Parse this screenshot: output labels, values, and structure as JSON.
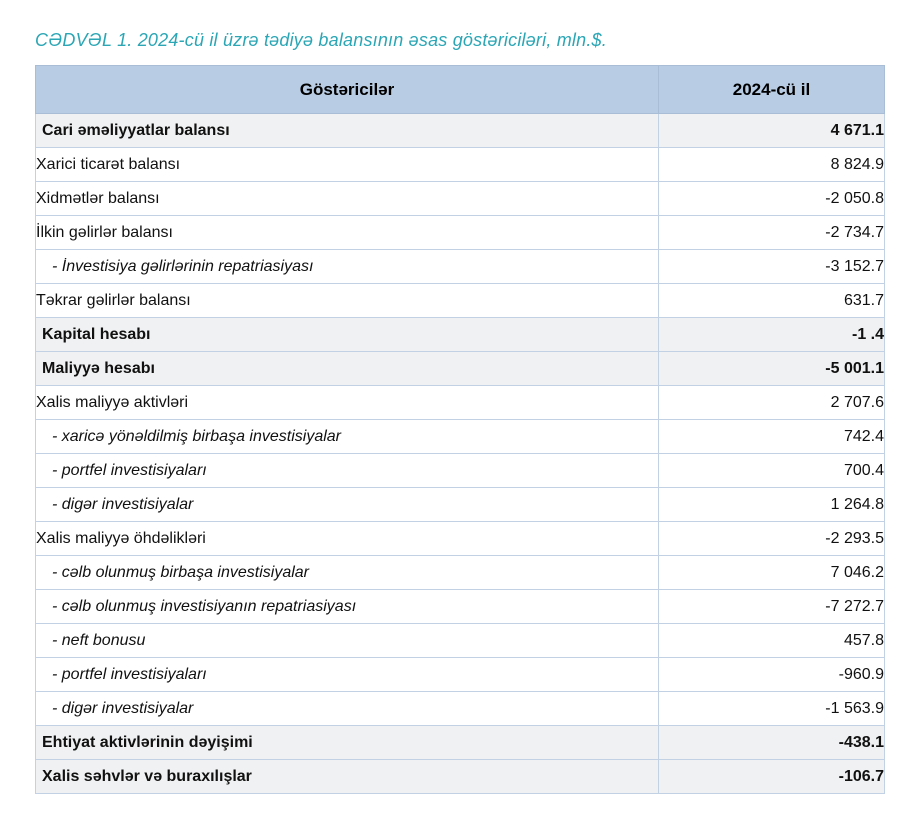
{
  "document": {
    "title": "CƏDVƏL 1. 2024-cü il üzrə tədiyə balansının əsas göstəriciləri, mln.$."
  },
  "table": {
    "columns": [
      {
        "label": "Göstəricilər"
      },
      {
        "label": "2024-cü il"
      }
    ],
    "rows": [
      {
        "label": "Cari əməliyyatlar balansı",
        "value": "4 671.1",
        "type": "section"
      },
      {
        "label": "Xarici ticarət balansı",
        "value": "8 824.9",
        "type": "item"
      },
      {
        "label": "Xidmətlər balansı",
        "value": "-2 050.8",
        "type": "item"
      },
      {
        "label": "İlkin gəlirlər balansı",
        "value": "-2 734.7",
        "type": "item"
      },
      {
        "label": "- İnvestisiya gəlirlərinin repatriasiyası",
        "value": "-3 152.7",
        "type": "sub"
      },
      {
        "label": "Təkrar gəlirlər balansı",
        "value": "631.7",
        "type": "item"
      },
      {
        "label": "Kapital hesabı",
        "value": "-1 .4",
        "type": "section"
      },
      {
        "label": "Maliyyə hesabı",
        "value": "-5 001.1",
        "type": "section"
      },
      {
        "label": "Xalis maliyyə aktivləri",
        "value": "2 707.6",
        "type": "item"
      },
      {
        "label": "- xaricə yönəldilmiş birbaşa investisiyalar",
        "value": "742.4",
        "type": "sub"
      },
      {
        "label": "- portfel investisiyaları",
        "value": "700.4",
        "type": "sub"
      },
      {
        "label": "- digər investisiyalar",
        "value": "1 264.8",
        "type": "sub"
      },
      {
        "label": "Xalis maliyyə öhdəlikləri",
        "value": "-2 293.5",
        "type": "item"
      },
      {
        "label": "- cəlb olunmuş birbaşa investisiyalar",
        "value": "7 046.2",
        "type": "sub"
      },
      {
        "label": "- cəlb olunmuş investisiyanın repatriasiyası",
        "value": "-7 272.7",
        "type": "sub"
      },
      {
        "label": "- neft bonusu",
        "value": "457.8",
        "type": "sub"
      },
      {
        "label": "- portfel investisiyaları",
        "value": "-960.9",
        "type": "sub"
      },
      {
        "label": "- digər investisiyalar",
        "value": "-1 563.9",
        "type": "sub"
      },
      {
        "label": "Ehtiyat aktivlərinin dəyişimi",
        "value": "-438.1",
        "type": "section"
      },
      {
        "label": "Xalis səhvlər və buraxılışlar",
        "value": "-106.7",
        "type": "section"
      }
    ]
  },
  "colors": {
    "title_text": "#2ba6b5",
    "header_bg": "#b8cce4",
    "section_row_bg": "#f0f1f2",
    "border_outer": "#a3b8d2",
    "border_inner": "#c3d1e4",
    "body_text": "#111111"
  }
}
